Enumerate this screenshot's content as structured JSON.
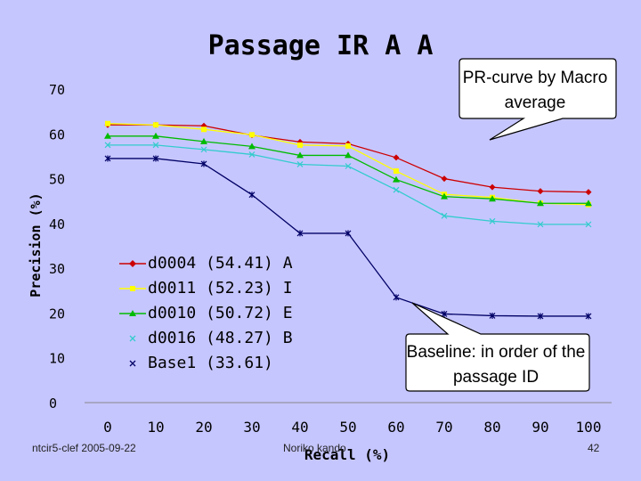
{
  "slide": {
    "footer_left": "ntcir5-clef 2005-09-22",
    "footer_center": "Noriko kando",
    "page_number": "42"
  },
  "chart_data": {
    "type": "line",
    "title": "Passage IR A A",
    "xlabel": "Recall (%)",
    "ylabel": "Precision (%)",
    "x": [
      0,
      10,
      20,
      30,
      40,
      50,
      60,
      70,
      80,
      90,
      100
    ],
    "xlim": [
      0,
      100
    ],
    "ylim": [
      0,
      70
    ],
    "xticks": [
      "0",
      "10",
      "20",
      "30",
      "40",
      "50",
      "60",
      "70",
      "80",
      "90",
      "100"
    ],
    "yticks": [
      "0",
      "10",
      "20",
      "30",
      "40",
      "50",
      "60",
      "70"
    ],
    "series": [
      {
        "name": "d0004",
        "label": "d0004 (54.41) A",
        "color": "#cc0000",
        "marker": "diamond",
        "values": [
          62,
          62,
          61.8,
          59.7,
          58.2,
          57.8,
          54.7,
          50,
          48.1,
          47.2,
          47
        ]
      },
      {
        "name": "d0011",
        "label": "d0011 (52.23) I",
        "color": "#ffff00",
        "marker": "square",
        "values": [
          62.3,
          62,
          61,
          59.8,
          57.5,
          57.3,
          51.7,
          46.5,
          45.8,
          44.5,
          44.2
        ]
      },
      {
        "name": "d0010",
        "label": "d0010 (50.72) E",
        "color": "#00bb00",
        "marker": "triangle",
        "values": [
          59.5,
          59.5,
          58.3,
          57.2,
          55.2,
          55.2,
          49.8,
          46,
          45.5,
          44.5,
          44.5
        ]
      },
      {
        "name": "d0016",
        "label": "d0016 (48.27) B",
        "color": "#33cccc",
        "marker": "x",
        "values": [
          57.5,
          57.5,
          56.5,
          55.4,
          53.2,
          52.8,
          47.5,
          41.7,
          40.5,
          39.8,
          39.8
        ]
      },
      {
        "name": "Base1",
        "label": "Base1 (33.61)",
        "color": "#000066",
        "marker": "star",
        "values": [
          54.5,
          54.5,
          53.3,
          46.4,
          37.8,
          37.8,
          23.5,
          19.8,
          19.4,
          19.3,
          19.3
        ]
      }
    ],
    "annotations": [
      {
        "text": "PR-curve by Macro average"
      },
      {
        "text": "Baseline: in order of the passage ID"
      }
    ]
  }
}
